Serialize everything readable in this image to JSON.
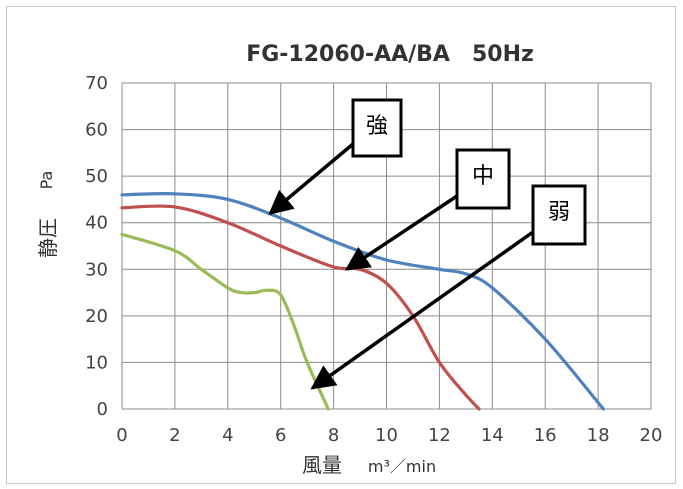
{
  "chart_data": {
    "type": "line",
    "title": "FG-12060-AA/BA　50Hz",
    "xlabel": "風量",
    "xunit": "m³／min",
    "ylabel": "静圧",
    "yunit": "Pa",
    "xlim": [
      0,
      20
    ],
    "ylim": [
      0,
      70
    ],
    "x_ticks": [
      "0",
      "2",
      "4",
      "6",
      "8",
      "10",
      "12",
      "14",
      "16",
      "18",
      "20"
    ],
    "y_ticks": [
      "0",
      "10",
      "20",
      "30",
      "40",
      "50",
      "60",
      "70"
    ],
    "grid": true,
    "series": [
      {
        "color": "#4f81bd",
        "x": [
          0,
          2,
          4,
          6,
          8,
          10,
          12,
          13,
          14,
          16,
          18.2
        ],
        "y": [
          46,
          46.2,
          45,
          41,
          36,
          32,
          30,
          29,
          26,
          15,
          0
        ]
      },
      {
        "color": "#c0504d",
        "x": [
          0,
          2,
          4,
          6,
          8,
          9,
          10,
          11,
          12,
          13,
          13.5
        ],
        "y": [
          43.2,
          43.4,
          40,
          35,
          30.5,
          30,
          27,
          20,
          10,
          3,
          0
        ]
      },
      {
        "color": "#9bbb59",
        "x": [
          0,
          2,
          3,
          4,
          4.5,
          5,
          5.5,
          6,
          6.5,
          7,
          7.8
        ],
        "y": [
          37.5,
          34,
          30,
          26,
          25,
          25,
          25.5,
          24.5,
          18,
          10,
          0
        ]
      }
    ],
    "annotations": [
      {
        "label": "強",
        "point_to": [
          5.6,
          42
        ]
      },
      {
        "label": "中",
        "point_to": [
          8.5,
          30
        ]
      },
      {
        "label": "弱",
        "point_to": [
          7.2,
          4.5
        ]
      }
    ]
  }
}
